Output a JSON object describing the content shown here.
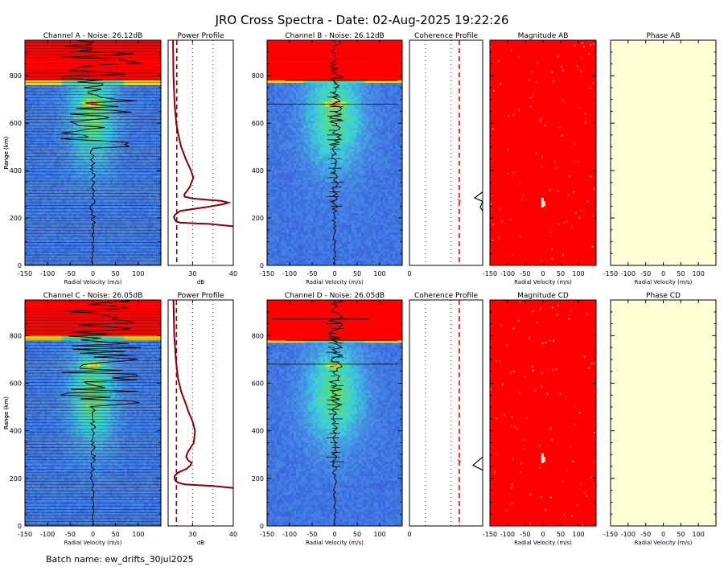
{
  "figure_title": "JRO Cross Spectra - Date: 02-Aug-2025 19:22:26",
  "batch_label": "Batch name: ew_drifts_30jul2025",
  "colors": {
    "red": "#ff0000",
    "dark_red": "#8b0000",
    "spectra_blue": "#3a50dc",
    "cyan": "#40d0e0",
    "green": "#60e060",
    "yellow": "#f0f020",
    "phase_fill": "#ffffd6"
  },
  "chart_data": [
    {
      "name": "channel-a-spectra",
      "type": "heatmap",
      "title": "Channel A - Noise: 26.12dB",
      "xlabel": "Radial Velocity (m/s)",
      "ylabel": "Range (km)",
      "xlim": [
        -150,
        150
      ],
      "ylim": [
        0,
        950
      ],
      "xticks": [
        "-150",
        "-100",
        "-50",
        "0",
        "50",
        "100"
      ],
      "yticks": [
        "0",
        "200",
        "400",
        "600",
        "800"
      ]
    },
    {
      "name": "power-profile-a",
      "type": "line",
      "title": "Power Profile",
      "xlabel": "dB",
      "xlim": [
        24,
        40
      ],
      "xticks": [
        "30",
        "40"
      ],
      "ylim": [
        0,
        950
      ],
      "profile": {
        "range_km": [
          165,
          175,
          180,
          185,
          195,
          205,
          215,
          230,
          245,
          258,
          265,
          272,
          282,
          290,
          300,
          330,
          370,
          400,
          450,
          500,
          550,
          600,
          680,
          800,
          950
        ],
        "db": [
          40,
          34,
          27,
          26,
          25.6,
          25.4,
          25.8,
          27,
          33,
          37.5,
          38.8,
          37,
          30,
          28,
          28,
          29.3,
          30.2,
          29.6,
          28.3,
          27.2,
          26.5,
          26,
          25.6,
          25.3,
          25.2
        ]
      },
      "noise_db": 26.12
    },
    {
      "name": "channel-b-spectra",
      "type": "heatmap",
      "title": "Channel B - Noise: 26.12dB",
      "xlabel": "Radial Velocity (m/s)",
      "ylabel": "Range (km)",
      "xlim": [
        -150,
        150
      ],
      "ylim": [
        0,
        950
      ],
      "xticks": [
        "-150",
        "-100",
        "-50",
        "0",
        "50",
        "100"
      ],
      "yticks": [
        "0",
        "200",
        "400",
        "600",
        "800"
      ]
    },
    {
      "name": "coherence-profile-ab",
      "type": "line",
      "title": "Coherence Profile",
      "xticks": [
        "0"
      ],
      "ylim": [
        0,
        950
      ]
    },
    {
      "name": "magnitude-ab",
      "type": "heatmap",
      "title": "Magnitude AB",
      "xlabel": "Radial Velocity (m/s)",
      "xlim": [
        -150,
        150
      ],
      "xticks": [
        "-150",
        "-100",
        "-50",
        "0",
        "50",
        "100"
      ]
    },
    {
      "name": "phase-ab",
      "type": "heatmap",
      "title": "Phase AB",
      "xlabel": "Radial Velocity (m/s)",
      "xlim": [
        -150,
        150
      ],
      "xticks": [
        "-150",
        "-100",
        "-50",
        "0",
        "50",
        "100"
      ]
    },
    {
      "name": "channel-c-spectra",
      "type": "heatmap",
      "title": "Channel C - Noise: 26.05dB",
      "xlabel": "Radial Velocity (m/s)",
      "ylabel": "Range (km)",
      "xlim": [
        -150,
        150
      ],
      "ylim": [
        0,
        950
      ],
      "xticks": [
        "-150",
        "-100",
        "-50",
        "0",
        "50",
        "100"
      ],
      "yticks": [
        "0",
        "200",
        "400",
        "600",
        "800"
      ]
    },
    {
      "name": "power-profile-c",
      "type": "line",
      "title": "Power Profile",
      "xlabel": "dB",
      "xlim": [
        24,
        40
      ],
      "xticks": [
        "30",
        "40"
      ],
      "ylim": [
        0,
        950
      ],
      "profile": {
        "range_km": [
          160,
          168,
          175,
          182,
          190,
          200,
          210,
          225,
          240,
          255,
          265,
          275,
          290,
          310,
          350,
          400,
          440,
          480,
          520,
          560,
          620,
          700,
          800,
          950
        ],
        "db": [
          40,
          35,
          28,
          26.5,
          25.8,
          25.6,
          25.6,
          26.5,
          28.5,
          29.5,
          29.8,
          29,
          28.4,
          28.8,
          30.3,
          30.6,
          30,
          29,
          28.2,
          27.3,
          26.4,
          25.9,
          25.5,
          25.3
        ]
      },
      "noise_db": 26.05
    },
    {
      "name": "channel-d-spectra",
      "type": "heatmap",
      "title": "Channel D - Noise: 26.05dB",
      "xlabel": "Radial Velocity (m/s)",
      "ylabel": "Range (km)",
      "xlim": [
        -150,
        150
      ],
      "ylim": [
        0,
        950
      ],
      "xticks": [
        "-150",
        "-100",
        "-50",
        "0",
        "50",
        "100"
      ],
      "yticks": [
        "0",
        "200",
        "400",
        "600",
        "800"
      ]
    },
    {
      "name": "coherence-profile-cd",
      "type": "line",
      "title": "Coherence Profile",
      "xticks": [
        "0"
      ],
      "ylim": [
        0,
        950
      ]
    },
    {
      "name": "magnitude-cd",
      "type": "heatmap",
      "title": "Magnitude CD",
      "xlabel": "Radial Velocity (m/s)",
      "xlim": [
        -150,
        150
      ],
      "xticks": [
        "-150",
        "-100",
        "-50",
        "0",
        "50",
        "100"
      ]
    },
    {
      "name": "phase-cd",
      "type": "heatmap",
      "title": "Phase CD",
      "xlabel": "Radial Velocity (m/s)",
      "xlim": [
        -150,
        150
      ],
      "xticks": [
        "-150",
        "-100",
        "-50",
        "0",
        "50",
        "100"
      ]
    }
  ]
}
